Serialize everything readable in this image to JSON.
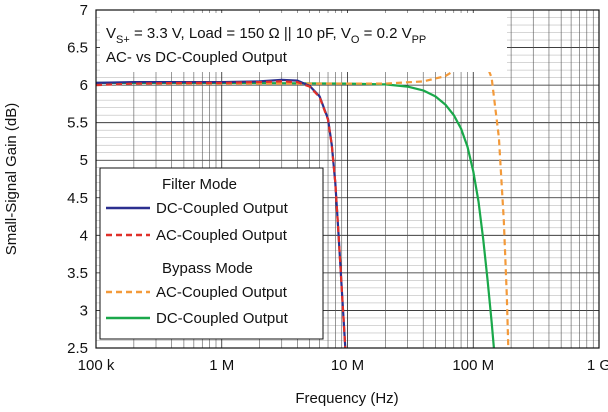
{
  "chart_data": {
    "type": "line",
    "xlabel": "Frequency (Hz)",
    "ylabel": "Small-Signal Gain (dB)",
    "x_scale": "log",
    "xlim": [
      100000,
      1000000000
    ],
    "ylim": [
      2.5,
      7
    ],
    "grid": true,
    "x_ticks": [
      {
        "value": 100000,
        "label": "100 k"
      },
      {
        "value": 1000000,
        "label": "1 M"
      },
      {
        "value": 10000000,
        "label": "10 M"
      },
      {
        "value": 100000000,
        "label": "100 M"
      },
      {
        "value": 1000000000,
        "label": "1 G"
      }
    ],
    "y_ticks": [
      2.5,
      3,
      3.5,
      4,
      4.5,
      5,
      5.5,
      6,
      6.5,
      7
    ],
    "annotation": {
      "line1_parts": [
        "V",
        "S+",
        " = 3.3 V, Load = 150 Ω || 10 pF, V",
        "O",
        " = 0.2 V",
        "PP"
      ],
      "line2": "AC- vs DC-Coupled Output"
    },
    "legend": {
      "placement": "bottom-left",
      "headers": [
        "Filter Mode",
        "Bypass Mode"
      ]
    },
    "series": [
      {
        "name": "DC-Coupled Output",
        "group": "Filter Mode",
        "color": "#2b2f8f",
        "dash": "solid",
        "x": [
          100000,
          200000,
          500000,
          1000000,
          2000000,
          3000000,
          4000000,
          5000000,
          6000000,
          7000000,
          7500000,
          8000000,
          8500000,
          9000000,
          9300000,
          9600000
        ],
        "y": [
          6.03,
          6.04,
          6.04,
          6.04,
          6.05,
          6.07,
          6.06,
          5.99,
          5.85,
          5.55,
          5.2,
          4.7,
          4.0,
          3.3,
          2.9,
          2.5
        ]
      },
      {
        "name": "AC-Coupled Output",
        "group": "Filter Mode",
        "color": "#e0302a",
        "dash": "dashed",
        "x": [
          100000,
          200000,
          500000,
          1000000,
          2000000,
          3000000,
          4000000,
          5000000,
          6000000,
          7000000,
          7500000,
          8000000,
          8500000,
          9000000,
          9300000,
          9600000
        ],
        "y": [
          6.0,
          6.02,
          6.03,
          6.03,
          6.04,
          6.05,
          6.04,
          5.98,
          5.84,
          5.54,
          5.2,
          4.7,
          4.0,
          3.3,
          2.9,
          2.5
        ]
      },
      {
        "name": "AC-Coupled Output",
        "group": "Bypass Mode",
        "color": "#f39a3a",
        "dash": "dashed",
        "x": [
          100000,
          1000000,
          10000000,
          20000000,
          40000000,
          60000000,
          80000000,
          100000000,
          120000000,
          140000000,
          160000000,
          175000000,
          185000000,
          190000000
        ],
        "y": [
          6.02,
          6.02,
          6.02,
          6.02,
          6.05,
          6.12,
          6.25,
          6.4,
          6.38,
          6.1,
          5.3,
          4.2,
          3.2,
          2.5
        ]
      },
      {
        "name": "DC-Coupled Output",
        "group": "Bypass Mode",
        "color": "#1aa84a",
        "dash": "solid",
        "x": [
          100000,
          1000000,
          10000000,
          20000000,
          30000000,
          40000000,
          50000000,
          60000000,
          70000000,
          80000000,
          90000000,
          100000000,
          110000000,
          120000000,
          130000000,
          140000000,
          146000000
        ],
        "y": [
          6.03,
          6.03,
          6.02,
          6.01,
          5.98,
          5.93,
          5.85,
          5.74,
          5.6,
          5.42,
          5.18,
          4.85,
          4.45,
          3.95,
          3.4,
          2.85,
          2.5
        ]
      }
    ]
  }
}
